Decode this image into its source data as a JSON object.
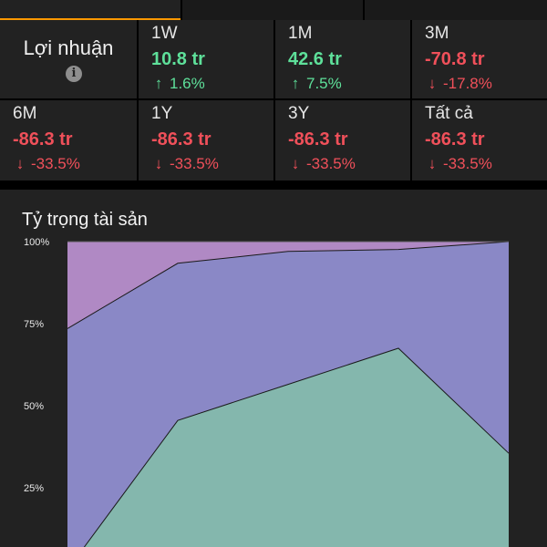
{
  "top_tabs": [
    "",
    "",
    ""
  ],
  "profit": {
    "title": "Lợi nhuận",
    "info_icon": "info-icon",
    "periods": [
      {
        "label": "1W",
        "value": "10.8 tr",
        "change": "1.6%",
        "direction": "up"
      },
      {
        "label": "1M",
        "value": "42.6 tr",
        "change": "7.5%",
        "direction": "up"
      },
      {
        "label": "3M",
        "value": "-70.8 tr",
        "change": "-17.8%",
        "direction": "down"
      },
      {
        "label": "6M",
        "value": "-86.3 tr",
        "change": "-33.5%",
        "direction": "down"
      },
      {
        "label": "1Y",
        "value": "-86.3 tr",
        "change": "-33.5%",
        "direction": "down"
      },
      {
        "label": "3Y",
        "value": "-86.3 tr",
        "change": "-33.5%",
        "direction": "down"
      },
      {
        "label": "Tất cả",
        "value": "-86.3 tr",
        "change": "-33.5%",
        "direction": "down"
      }
    ]
  },
  "colors": {
    "up": "#5ee09a",
    "down": "#f0505a",
    "accent": "#ff9800"
  },
  "chart_data": {
    "type": "area",
    "title": "Tỷ trọng tài sản",
    "stacked_percent": true,
    "y_ticks": [
      "100%",
      "75%",
      "50%",
      "25%"
    ],
    "ylim": [
      0,
      100
    ],
    "x": [
      0,
      1,
      2,
      3,
      4
    ],
    "series": [
      {
        "color": "#84b7ad",
        "values": [
          0,
          45.5,
          56.5,
          67.5,
          35.5
        ]
      },
      {
        "color": "#8a88c6",
        "values": [
          73.5,
          47.9,
          40.5,
          30.1,
          64.5
        ]
      },
      {
        "color": "#b089c4",
        "values": [
          26.5,
          6.6,
          3.0,
          2.4,
          0
        ]
      }
    ]
  }
}
